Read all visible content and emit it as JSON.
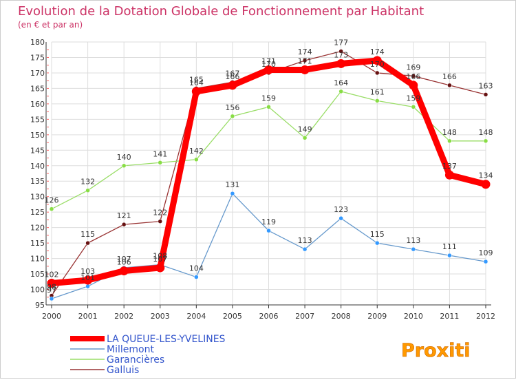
{
  "chart_data": {
    "type": "line",
    "title": "Evolution de la Dotation Globale de Fonctionnement par Habitant",
    "subtitle": "(en € et par an)",
    "xlabel": "",
    "ylabel": "",
    "ylim": [
      95,
      180
    ],
    "yticks": [
      95,
      100,
      105,
      110,
      115,
      120,
      125,
      130,
      135,
      140,
      145,
      150,
      155,
      160,
      165,
      170,
      175,
      180
    ],
    "categories": [
      "2000",
      "2001",
      "2002",
      "2003",
      "2004",
      "2005",
      "2006",
      "2007",
      "2008",
      "2009",
      "2010",
      "2011",
      "2012"
    ],
    "grid": true,
    "legend_position": "bottom-left",
    "series": [
      {
        "name": "LA QUEUE-LES-YVELINES",
        "color": "#ff0000",
        "marker_color": "#ff0000",
        "values": [
          102,
          103,
          106,
          107,
          164,
          166,
          171,
          171,
          173,
          174,
          166,
          137,
          134
        ]
      },
      {
        "name": "Millemont",
        "color": "#6699cc",
        "marker_color": "#3399ff",
        "values": [
          97,
          101,
          107,
          108,
          104,
          131,
          119,
          113,
          123,
          115,
          113,
          111,
          109
        ]
      },
      {
        "name": "Garancières",
        "color": "#99dd66",
        "marker_color": "#88dd44",
        "values": [
          126,
          132,
          140,
          141,
          142,
          156,
          159,
          149,
          164,
          161,
          159,
          148,
          148
        ]
      },
      {
        "name": "Galluis",
        "color": "#993333",
        "marker_color": "#661111",
        "values": [
          98,
          115,
          121,
          122,
          165,
          167,
          170,
          174,
          177,
          170,
          169,
          166,
          163
        ]
      }
    ]
  },
  "logo": {
    "text": "Proxiti"
  }
}
